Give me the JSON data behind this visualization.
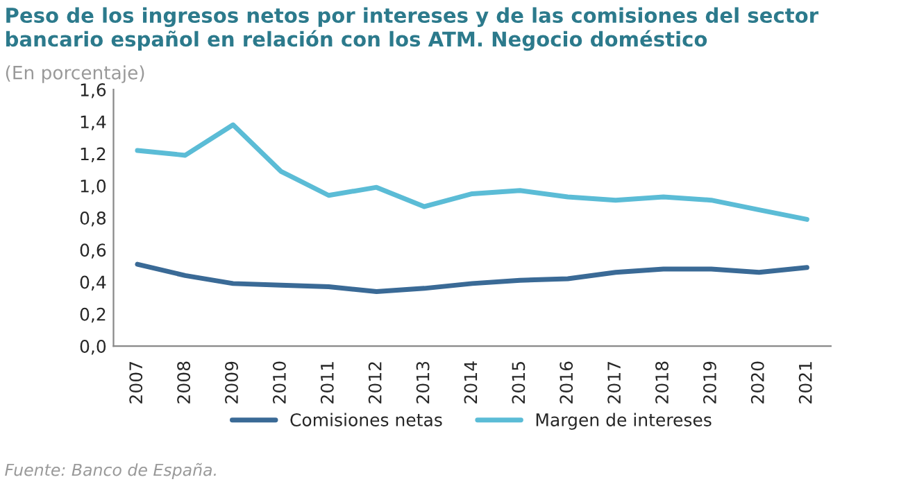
{
  "chart_data": {
    "type": "line",
    "title": "Peso de los ingresos netos por intereses y de las comisiones del sector bancario español en relación con los ATM. Negocio doméstico",
    "subtitle": "(En porcentaje)",
    "categories": [
      "2007",
      "2008",
      "2009",
      "2010",
      "2011",
      "2012",
      "2013",
      "2014",
      "2015",
      "2016",
      "2017",
      "2018",
      "2019",
      "2020",
      "2021"
    ],
    "series": [
      {
        "name": "Comisiones netas",
        "color": "#3a6a96",
        "values": [
          0.51,
          0.44,
          0.39,
          0.38,
          0.37,
          0.34,
          0.36,
          0.39,
          0.41,
          0.42,
          0.46,
          0.48,
          0.48,
          0.46,
          0.49
        ]
      },
      {
        "name": "Margen de intereses",
        "color": "#5bbcd6",
        "values": [
          1.22,
          1.19,
          1.38,
          1.09,
          0.94,
          0.99,
          0.87,
          0.95,
          0.97,
          0.93,
          0.91,
          0.93,
          0.91,
          0.85,
          0.79
        ]
      }
    ],
    "ylim": [
      0,
      1.6
    ],
    "yticks": [
      {
        "value": 0,
        "label": "0,0"
      },
      {
        "value": 0.2,
        "label": "0,2"
      },
      {
        "value": 0.4,
        "label": "0,4"
      },
      {
        "value": 0.6,
        "label": "0,6"
      },
      {
        "value": 0.8,
        "label": "0,8"
      },
      {
        "value": 1.0,
        "label": "1,0"
      },
      {
        "value": 1.2,
        "label": "1,2"
      },
      {
        "value": 1.4,
        "label": "1,4"
      },
      {
        "value": 1.6,
        "label": "1,6"
      }
    ],
    "legend": "bottom",
    "grid": false,
    "line_style": "solid",
    "annotations": [
      "Fuente: Banco de España."
    ]
  }
}
